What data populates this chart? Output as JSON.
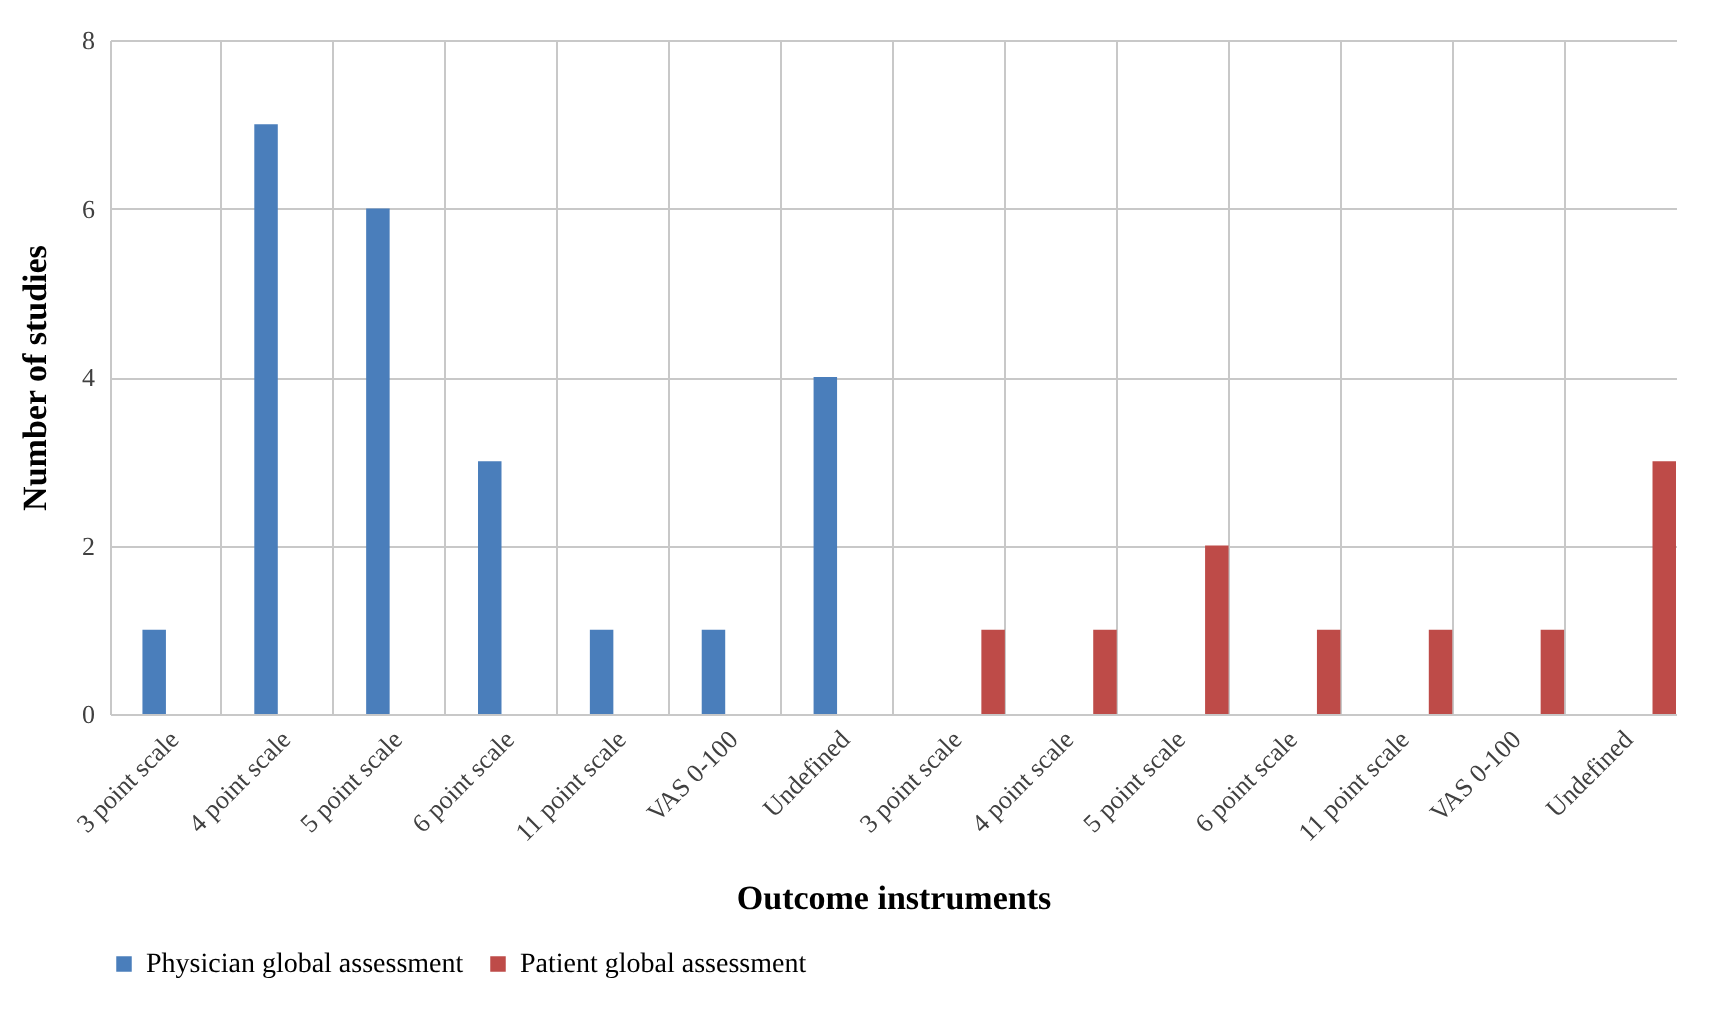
{
  "chart_data": {
    "type": "bar",
    "xlabel": "Outcome instruments",
    "ylabel": "Number of studies",
    "categories": [
      "3 point scale",
      "4 point scale",
      "5 point scale",
      "6 point scale",
      "11 point scale",
      "VAS 0-100",
      "Undefined",
      "3 point scale",
      "4 point scale",
      "5 point scale",
      "6 point scale",
      "11 point scale",
      "VAS 0-100",
      "Undefined"
    ],
    "series": [
      {
        "name": "Physician global assessment",
        "color": "#4a7ebb",
        "values": [
          1,
          7,
          6,
          3,
          1,
          1,
          4,
          null,
          null,
          null,
          null,
          null,
          null,
          null
        ]
      },
      {
        "name": "Patient global assessment",
        "color": "#be4b48",
        "values": [
          null,
          null,
          null,
          null,
          null,
          null,
          null,
          1,
          1,
          2,
          1,
          1,
          1,
          3
        ]
      }
    ],
    "ylim": [
      0,
      8
    ],
    "yticks": [
      0,
      2,
      4,
      6,
      8
    ],
    "grid": true,
    "legend": "bottom"
  }
}
